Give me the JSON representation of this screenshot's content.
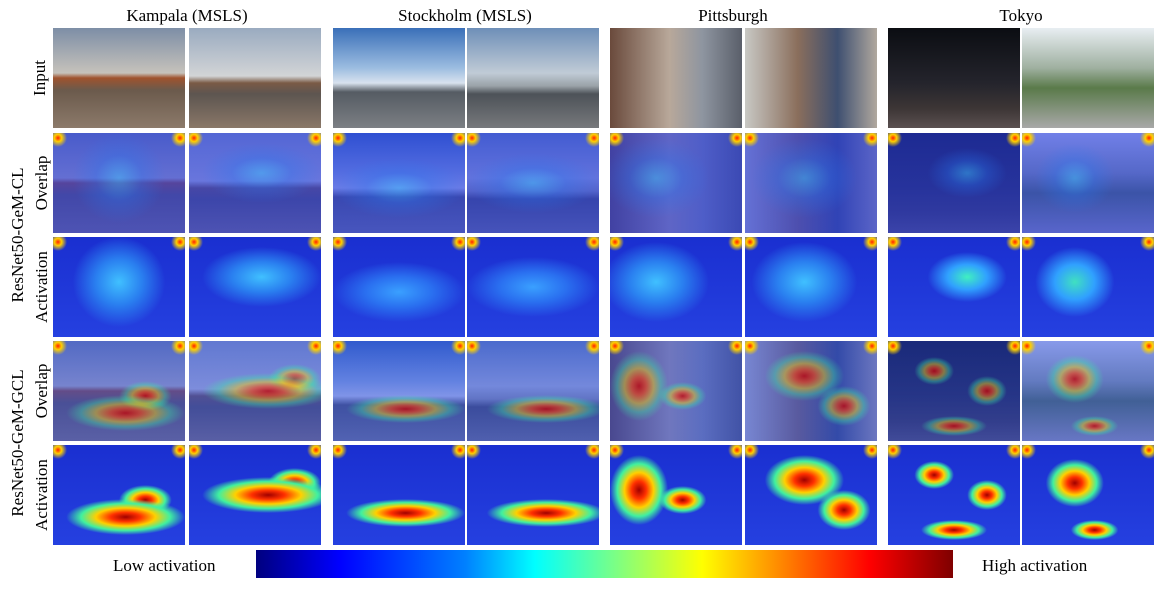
{
  "columns": [
    "Kampala (MSLS)",
    "Stockholm (MSLS)",
    "Pittsburgh",
    "Tokyo"
  ],
  "rows": {
    "input": "Input",
    "cl": {
      "model": "ResNet50-GeM-CL",
      "overlap": "Overlap",
      "activation": "Activation"
    },
    "gcl": {
      "model": "ResNet50-GeM-GCL",
      "overlap": "Overlap",
      "activation": "Activation"
    }
  },
  "colorbar": {
    "low": "Low activation",
    "high": "High activation"
  }
}
